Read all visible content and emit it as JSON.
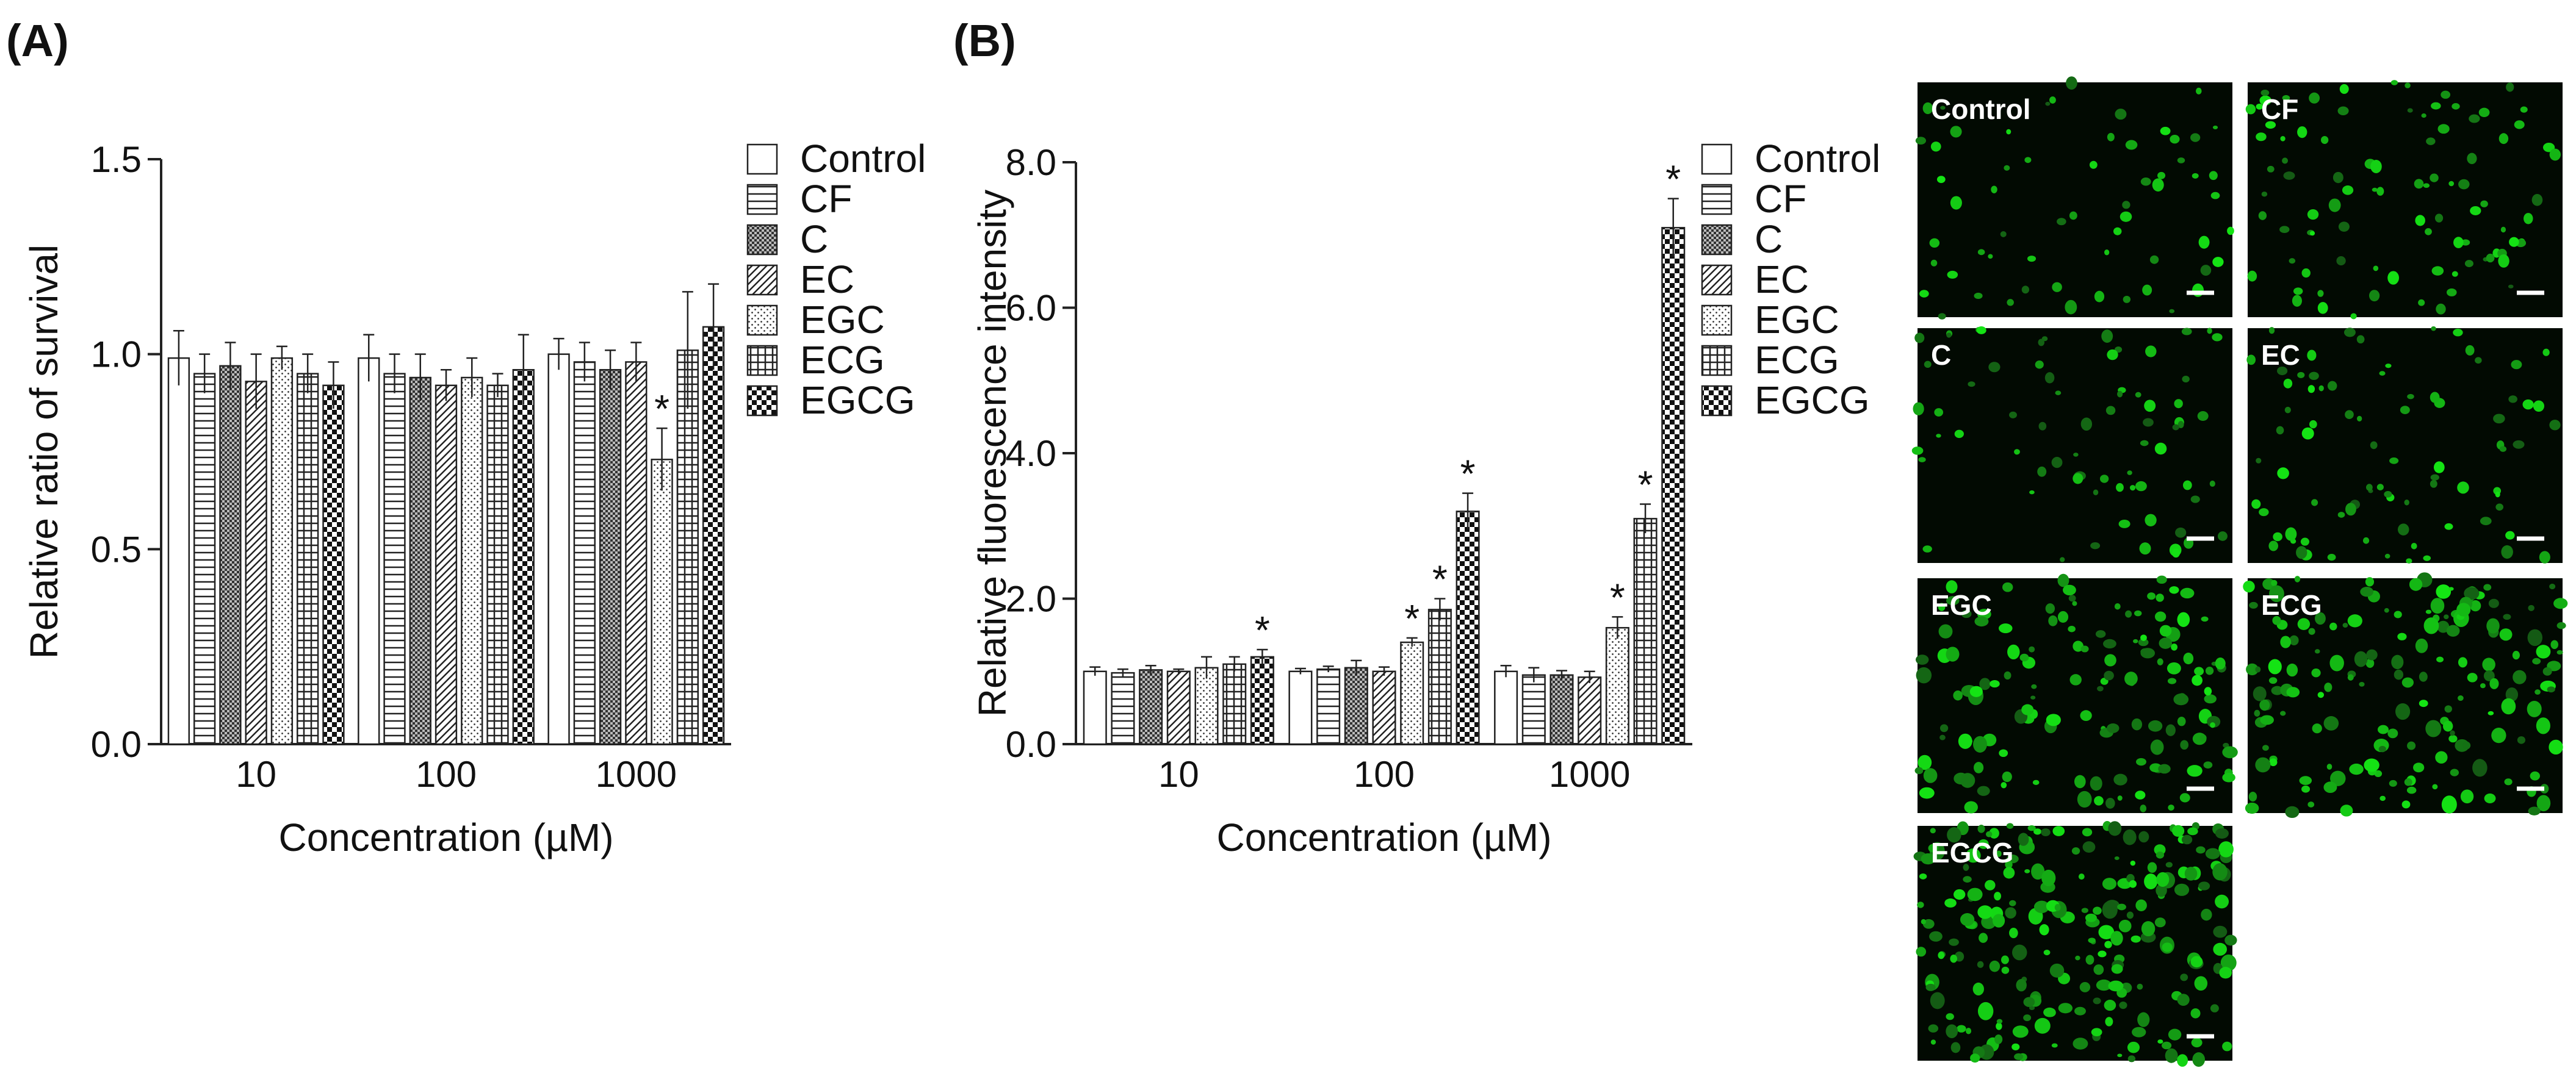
{
  "chart_data": [
    {
      "type": "bar",
      "panel_label": "(A)",
      "y_label": "Relative ratio of survival",
      "x_label": "Concentration (µM)",
      "categories": [
        "10",
        "100",
        "1000"
      ],
      "ylim": [
        0,
        1.5
      ],
      "yticks": [
        {
          "value": 0,
          "label": "0.0"
        },
        0.5,
        {
          "value": 1,
          "label": "1.0"
        },
        1.5
      ],
      "series": [
        {
          "name": "Control",
          "pattern": "none",
          "values": [
            0.99,
            0.99,
            1.0
          ],
          "errors": [
            0.07,
            0.06,
            0.04
          ],
          "labels": [
            null,
            null,
            null
          ]
        },
        {
          "name": "CF",
          "pattern": "hlines",
          "values": [
            0.95,
            0.95,
            0.98
          ],
          "errors": [
            0.05,
            0.05,
            0.05
          ],
          "labels": [
            null,
            null,
            null
          ]
        },
        {
          "name": "C",
          "pattern": "crosshatch",
          "values": [
            0.97,
            0.94,
            0.96
          ],
          "errors": [
            0.06,
            0.06,
            0.05
          ],
          "labels": [
            null,
            null,
            null
          ]
        },
        {
          "name": "EC",
          "pattern": "diag",
          "values": [
            0.93,
            0.92,
            0.98
          ],
          "errors": [
            0.07,
            0.04,
            0.05
          ],
          "labels": [
            null,
            null,
            null
          ]
        },
        {
          "name": "EGC",
          "pattern": "dots",
          "values": [
            0.99,
            0.94,
            0.73
          ],
          "errors": [
            0.03,
            0.05,
            0.08
          ],
          "labels": [
            null,
            null,
            "*"
          ]
        },
        {
          "name": "ECG",
          "pattern": "grid",
          "values": [
            0.95,
            0.92,
            1.01
          ],
          "errors": [
            0.05,
            0.03,
            0.15
          ],
          "labels": [
            null,
            null,
            null
          ]
        },
        {
          "name": "EGCG",
          "pattern": "checker",
          "values": [
            0.92,
            0.96,
            1.07
          ],
          "errors": [
            0.06,
            0.09,
            0.11
          ],
          "labels": [
            null,
            null,
            null
          ]
        }
      ]
    },
    {
      "type": "bar",
      "panel_label": "(B)",
      "y_label": "Relative fluorescence intensity",
      "x_label": "Concentration (µM)",
      "categories": [
        "10",
        "100",
        "1000"
      ],
      "ylim": [
        0,
        8
      ],
      "yticks": [
        {
          "value": 0,
          "label": "0.0"
        },
        {
          "value": 2,
          "label": "2.0"
        },
        {
          "value": 4,
          "label": "4.0"
        },
        {
          "value": 6,
          "label": "6.0"
        },
        {
          "value": 8,
          "label": "8.0"
        }
      ],
      "series": [
        {
          "name": "Control",
          "pattern": "none",
          "values": [
            1.0,
            1.0,
            1.0
          ],
          "errors": [
            0.06,
            0.04,
            0.08
          ],
          "labels": [
            null,
            null,
            null
          ]
        },
        {
          "name": "CF",
          "pattern": "hlines",
          "values": [
            0.98,
            1.03,
            0.95
          ],
          "errors": [
            0.05,
            0.04,
            0.1
          ],
          "labels": [
            null,
            null,
            null
          ]
        },
        {
          "name": "C",
          "pattern": "crosshatch",
          "values": [
            1.02,
            1.05,
            0.95
          ],
          "errors": [
            0.06,
            0.1,
            0.06
          ],
          "labels": [
            null,
            null,
            null
          ]
        },
        {
          "name": "EC",
          "pattern": "diag",
          "values": [
            1.0,
            1.0,
            0.92
          ],
          "errors": [
            0.03,
            0.06,
            0.08
          ],
          "labels": [
            null,
            null,
            null
          ]
        },
        {
          "name": "EGC",
          "pattern": "dots",
          "values": [
            1.05,
            1.4,
            1.6
          ],
          "errors": [
            0.15,
            0.06,
            0.15
          ],
          "labels": [
            null,
            "*",
            "*"
          ]
        },
        {
          "name": "ECG",
          "pattern": "grid",
          "values": [
            1.1,
            1.85,
            3.1
          ],
          "errors": [
            0.1,
            0.15,
            0.2
          ],
          "labels": [
            null,
            "*",
            "*"
          ]
        },
        {
          "name": "EGCG",
          "pattern": "checker",
          "values": [
            1.2,
            3.2,
            7.1
          ],
          "errors": [
            0.1,
            0.25,
            0.4
          ],
          "labels": [
            "*",
            "*",
            "*"
          ]
        }
      ]
    }
  ],
  "micrographs": {
    "panels": [
      {
        "label": "Control"
      },
      {
        "label": "CF"
      },
      {
        "label": "C"
      },
      {
        "label": "EC"
      },
      {
        "label": "EGC"
      },
      {
        "label": "ECG"
      },
      {
        "label": "EGCG"
      }
    ]
  }
}
